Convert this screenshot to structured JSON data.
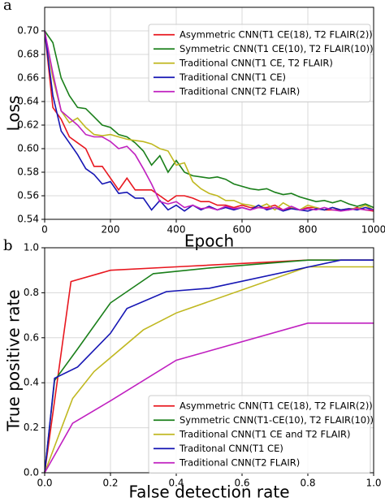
{
  "chart_data": [
    {
      "type": "line",
      "panel_label": "a",
      "xlabel": "Epoch",
      "ylabel": "Loss",
      "x": [
        0,
        25,
        50,
        75,
        100,
        125,
        150,
        175,
        200,
        225,
        250,
        275,
        300,
        325,
        350,
        375,
        400,
        425,
        450,
        475,
        500,
        525,
        550,
        575,
        600,
        625,
        650,
        675,
        700,
        725,
        750,
        775,
        800,
        825,
        850,
        875,
        900,
        925,
        950,
        975,
        1000
      ],
      "xlim": [
        0,
        1000
      ],
      "xticks": [
        0,
        200,
        400,
        600,
        800,
        1000
      ],
      "ylim": [
        0.54,
        0.72
      ],
      "yticks": [
        0.54,
        0.56,
        0.58,
        {
          "value": 0.6,
          "label": "0.60"
        },
        0.62,
        0.64,
        0.66,
        0.68,
        {
          "value": 0.7,
          "label": "0.70"
        }
      ],
      "grid": true,
      "legend": "upper right",
      "series": [
        {
          "name": "Asymmetric CNN(T1 CE(18), T2 FLAIR(2))",
          "color": "#e8171f",
          "values": [
            0.7,
            0.635,
            0.625,
            0.61,
            0.605,
            0.6,
            0.585,
            0.585,
            0.575,
            0.565,
            0.575,
            0.565,
            0.565,
            0.565,
            0.56,
            0.555,
            0.56,
            0.56,
            0.558,
            0.555,
            0.555,
            0.552,
            0.552,
            0.55,
            0.552,
            0.55,
            0.55,
            0.55,
            0.552,
            0.548,
            0.55,
            0.548,
            0.55,
            0.55,
            0.548,
            0.548,
            0.548,
            0.548,
            0.55,
            0.548,
            0.547
          ]
        },
        {
          "name": "Symmetric CNN(T1 CE(10), T2 FLAIR(10))",
          "color": "#1a7f1a",
          "values": [
            0.7,
            0.69,
            0.66,
            0.645,
            0.635,
            0.634,
            0.627,
            0.62,
            0.618,
            0.612,
            0.61,
            0.605,
            0.598,
            0.586,
            0.594,
            0.58,
            0.59,
            0.58,
            0.577,
            0.576,
            0.575,
            0.576,
            0.574,
            0.57,
            0.568,
            0.566,
            0.565,
            0.566,
            0.563,
            0.561,
            0.562,
            0.559,
            0.557,
            0.555,
            0.556,
            0.554,
            0.556,
            0.553,
            0.551,
            0.553,
            0.55
          ]
        },
        {
          "name": "Traditional CNN(T1 CE, T2 FLAIR)",
          "color": "#c0b820",
          "values": [
            0.7,
            0.66,
            0.632,
            0.622,
            0.626,
            0.618,
            0.612,
            0.611,
            0.612,
            0.61,
            0.608,
            0.607,
            0.606,
            0.604,
            0.6,
            0.598,
            0.586,
            0.588,
            0.572,
            0.566,
            0.562,
            0.56,
            0.556,
            0.556,
            0.553,
            0.552,
            0.55,
            0.553,
            0.548,
            0.554,
            0.55,
            0.548,
            0.552,
            0.55,
            0.548,
            0.55,
            0.548,
            0.549,
            0.549,
            0.552,
            0.548
          ]
        },
        {
          "name": "Traditional CNN(T1 CE)",
          "color": "#1616b4",
          "values": [
            0.7,
            0.645,
            0.615,
            0.605,
            0.595,
            0.583,
            0.578,
            0.57,
            0.572,
            0.562,
            0.563,
            0.558,
            0.558,
            0.548,
            0.556,
            0.548,
            0.552,
            0.547,
            0.552,
            0.548,
            0.551,
            0.548,
            0.55,
            0.548,
            0.55,
            0.548,
            0.552,
            0.548,
            0.55,
            0.547,
            0.549,
            0.548,
            0.547,
            0.549,
            0.548,
            0.55,
            0.548,
            0.549,
            0.548,
            0.55,
            0.548
          ]
        },
        {
          "name": "Traditional CNN(T2 FLAIR)",
          "color": "#c020c0",
          "values": [
            0.7,
            0.664,
            0.632,
            0.626,
            0.62,
            0.612,
            0.61,
            0.61,
            0.606,
            0.6,
            0.602,
            0.595,
            0.583,
            0.57,
            0.555,
            0.553,
            0.555,
            0.55,
            0.552,
            0.549,
            0.55,
            0.548,
            0.551,
            0.549,
            0.55,
            0.548,
            0.55,
            0.549,
            0.55,
            0.548,
            0.551,
            0.548,
            0.549,
            0.548,
            0.55,
            0.548,
            0.547,
            0.548,
            0.549,
            0.548,
            0.548
          ]
        }
      ]
    },
    {
      "type": "line",
      "panel_label": "b",
      "xlabel": "False detection rate",
      "ylabel": "True positive rate",
      "xlim": [
        0,
        1
      ],
      "xticks": [
        {
          "value": 0,
          "label": "0.0"
        },
        0.2,
        0.4,
        0.6,
        0.8,
        {
          "value": 1,
          "label": "1.0"
        }
      ],
      "ylim": [
        0,
        1
      ],
      "yticks": [
        {
          "value": 0,
          "label": "0.0"
        },
        0.2,
        0.4,
        0.6,
        0.8,
        {
          "value": 1,
          "label": "1.0"
        }
      ],
      "grid": true,
      "legend": "lower right",
      "series": [
        {
          "name": "Asymmetric CNN(T1 CE(18), T2 FLAIR(2))",
          "color": "#e8171f",
          "x": [
            0,
            0.08,
            0.2,
            0.4,
            0.8,
            1
          ],
          "values": [
            0,
            0.85,
            0.9,
            0.915,
            0.945,
            0.945
          ]
        },
        {
          "name": "Symmetric CNN(T1-CE(10), T2 FLAIR(10))",
          "color": "#1a7f1a",
          "x": [
            0,
            0.03,
            0.1,
            0.2,
            0.33,
            0.5,
            0.8,
            1
          ],
          "values": [
            0,
            0.41,
            0.55,
            0.755,
            0.885,
            0.91,
            0.945,
            0.945
          ]
        },
        {
          "name": "Traditional CNN(T1 CE and T2 FLAIR)",
          "color": "#c0b820",
          "x": [
            0,
            0.085,
            0.15,
            0.3,
            0.4,
            0.8,
            1
          ],
          "values": [
            0,
            0.33,
            0.45,
            0.635,
            0.71,
            0.915,
            0.915
          ]
        },
        {
          "name": "Traditonal CNN(T1 CE)",
          "color": "#1616b4",
          "x": [
            0,
            0.03,
            0.1,
            0.2,
            0.25,
            0.37,
            0.5,
            0.9,
            1
          ],
          "values": [
            0,
            0.42,
            0.47,
            0.62,
            0.73,
            0.805,
            0.82,
            0.945,
            0.945
          ]
        },
        {
          "name": "Traditional CNN(T2 FLAIR)",
          "color": "#c020c0",
          "x": [
            0,
            0.085,
            0.2,
            0.4,
            0.8,
            1
          ],
          "values": [
            0,
            0.22,
            0.32,
            0.5,
            0.665,
            0.665
          ]
        }
      ]
    }
  ]
}
